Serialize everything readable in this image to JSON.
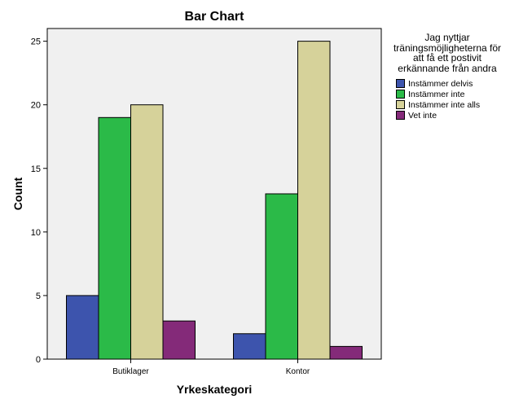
{
  "chart_data": {
    "type": "bar",
    "title": "Bar Chart",
    "xlabel": "Yrkeskategori",
    "ylabel": "Count",
    "categories": [
      "Butiklager",
      "Kontor"
    ],
    "ylim": [
      0,
      26
    ],
    "yticks": [
      0,
      5,
      10,
      15,
      20,
      25
    ],
    "legend_title": "Jag nyttjar träningsmöjligheterna för att få ett postivit erkännande från andra",
    "legend_placement": "right",
    "grid": false,
    "series": [
      {
        "name": "Instämmer delvis",
        "color": "#3d54ad",
        "values": [
          5,
          2
        ]
      },
      {
        "name": "Instämmer inte",
        "color": "#2bba48",
        "values": [
          19,
          13
        ]
      },
      {
        "name": "Instämmer inte alls",
        "color": "#d6d29a",
        "values": [
          20,
          25
        ]
      },
      {
        "name": "Vet inte",
        "color": "#842a79",
        "values": [
          3,
          1
        ]
      }
    ]
  }
}
